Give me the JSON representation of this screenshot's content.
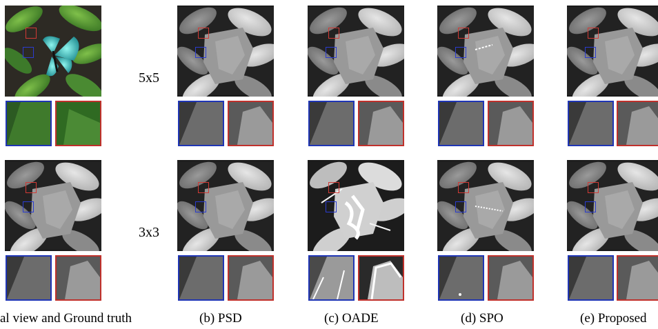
{
  "figure": {
    "row_labels": [
      "5x5",
      "3x3"
    ],
    "captions": [
      "al view and Ground truth",
      "(b) PSD",
      "(c) OADE",
      "(d) SPO",
      "(e) Proposed"
    ]
  },
  "colors": {
    "roi_red": "#d23a35",
    "roi_blue": "#2b3cd0",
    "crop_border_red": "#c0302b",
    "crop_border_blue": "#1f35b5"
  }
}
